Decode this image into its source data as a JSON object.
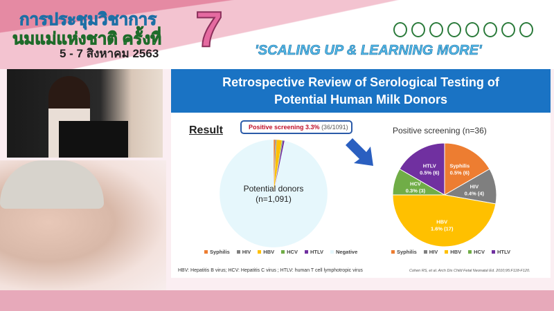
{
  "banner": {
    "title_line1": "การประชุมวิชาการ",
    "title_line2": "นมแม่แห่งชาติ ครั้งที่",
    "dates": "5 - 7 สิงหาคม 2563",
    "number": "7",
    "slogan": "'SCALING UP & LEARNING MORE'"
  },
  "slide": {
    "title_line1": "Retrospective Review of Serological Testing of",
    "title_line2": "Potential Human Milk Donors",
    "result_label": "Result",
    "callout_bold": "Positive screening 3.3%",
    "callout_detail": "(36/1091)",
    "center_line1": "Potential donors",
    "center_line2": "(n=1,091)",
    "footnote_html": "HBV: Hepatitis B virus; HCV: Hepatitis C virus ; HTLV: human T cell lymphotropic virus",
    "citation": "Cohen RS, et al. Arch Dis Child Fetal Neonatal Ed. 2010;95:F118-F120."
  },
  "chart_data": [
    {
      "type": "pie",
      "title": "",
      "categories": [
        "Syphilis",
        "HIV",
        "HBV",
        "HCV",
        "HTLV",
        "Negative"
      ],
      "values": [
        6,
        4,
        17,
        3,
        6,
        1055
      ],
      "colors": [
        "#ed7d31",
        "#7f7f7f",
        "#ffc000",
        "#70ad47",
        "#7030a0",
        "#e6f7fc"
      ],
      "legend": "bottom"
    },
    {
      "type": "pie",
      "title": "Positive screening (n=36)",
      "categories": [
        "Syphilis",
        "HIV",
        "HBV",
        "HCV",
        "HTLV"
      ],
      "values": [
        6,
        4,
        17,
        3,
        6
      ],
      "labels": [
        "0.5% (6)",
        "0.4% (4)",
        "1.6% (17)",
        "0.3% (3)",
        "0.5% (6)"
      ],
      "colors": [
        "#ed7d31",
        "#7f7f7f",
        "#ffc000",
        "#70ad47",
        "#7030a0"
      ],
      "legend": "bottom"
    }
  ]
}
